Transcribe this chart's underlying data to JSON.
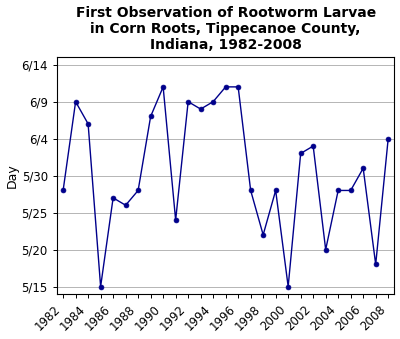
{
  "title": "First Observation of Rootworm Larvae\nin Corn Roots, Tippecanoe County,\nIndiana, 1982-2008",
  "ylabel": "Day",
  "years": [
    1982,
    1983,
    1984,
    1985,
    1986,
    1987,
    1988,
    1989,
    1990,
    1991,
    1992,
    1993,
    1994,
    1995,
    1996,
    1997,
    1998,
    1999,
    2000,
    2001,
    2002,
    2003,
    2004,
    2005,
    2006,
    2007,
    2008
  ],
  "day_values": [
    13,
    25,
    22,
    0,
    12,
    11,
    13,
    23,
    27,
    9,
    25,
    24,
    25,
    27,
    27,
    13,
    7,
    13,
    0,
    18,
    19,
    5,
    13,
    13,
    16,
    3,
    20
  ],
  "ytick_labels": [
    "5/15",
    "5/20",
    "5/25",
    "5/30",
    "6/4",
    "6/9",
    "6/14"
  ],
  "ytick_values": [
    0,
    5,
    10,
    15,
    20,
    25,
    30
  ],
  "ylim": [
    -1,
    31
  ],
  "xlim": [
    1981.5,
    2008.5
  ],
  "line_color": "#00008B",
  "marker": "o",
  "marker_size": 3.5,
  "title_fontsize": 10,
  "axis_fontsize": 9,
  "tick_fontsize": 8.5,
  "background_color": "#ffffff",
  "xtick_label_years": [
    1982,
    1984,
    1986,
    1988,
    1990,
    1992,
    1994,
    1996,
    1998,
    2000,
    2002,
    2004,
    2006,
    2008
  ],
  "xtick_all_years": [
    1982,
    1983,
    1984,
    1985,
    1986,
    1987,
    1988,
    1989,
    1990,
    1991,
    1992,
    1993,
    1994,
    1995,
    1996,
    1997,
    1998,
    1999,
    2000,
    2001,
    2002,
    2003,
    2004,
    2005,
    2006,
    2007,
    2008
  ]
}
